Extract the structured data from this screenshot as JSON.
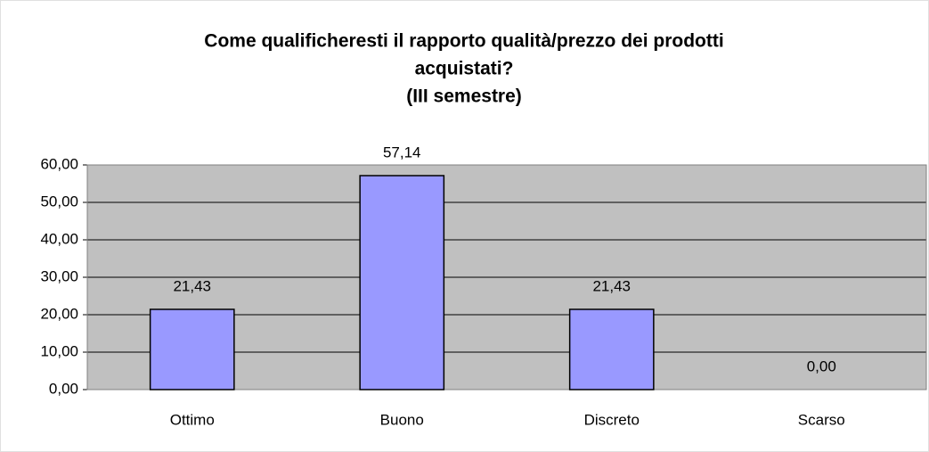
{
  "chart_data": {
    "type": "bar",
    "title": [
      "Come qualificheresti il rapporto qualità/prezzo dei prodotti",
      "acquistati?",
      "(III semestre)"
    ],
    "categories": [
      "Ottimo",
      "Buono",
      "Discreto",
      "Scarso"
    ],
    "values": [
      21.43,
      57.14,
      21.43,
      0
    ],
    "value_labels": [
      "21,43",
      "57,14",
      "21,43",
      "0,00"
    ],
    "color": "#9999ff",
    "ylim": [
      0,
      60
    ],
    "yticks": [
      {
        "value": 0,
        "label": "0,00"
      },
      {
        "value": 10,
        "label": "10,00"
      },
      {
        "value": 20,
        "label": "20,00"
      },
      {
        "value": 30,
        "label": "30,00"
      },
      {
        "value": 40,
        "label": "40,00"
      },
      {
        "value": 50,
        "label": "50,00"
      },
      {
        "value": 60,
        "label": "60,00"
      }
    ],
    "grid": true
  }
}
